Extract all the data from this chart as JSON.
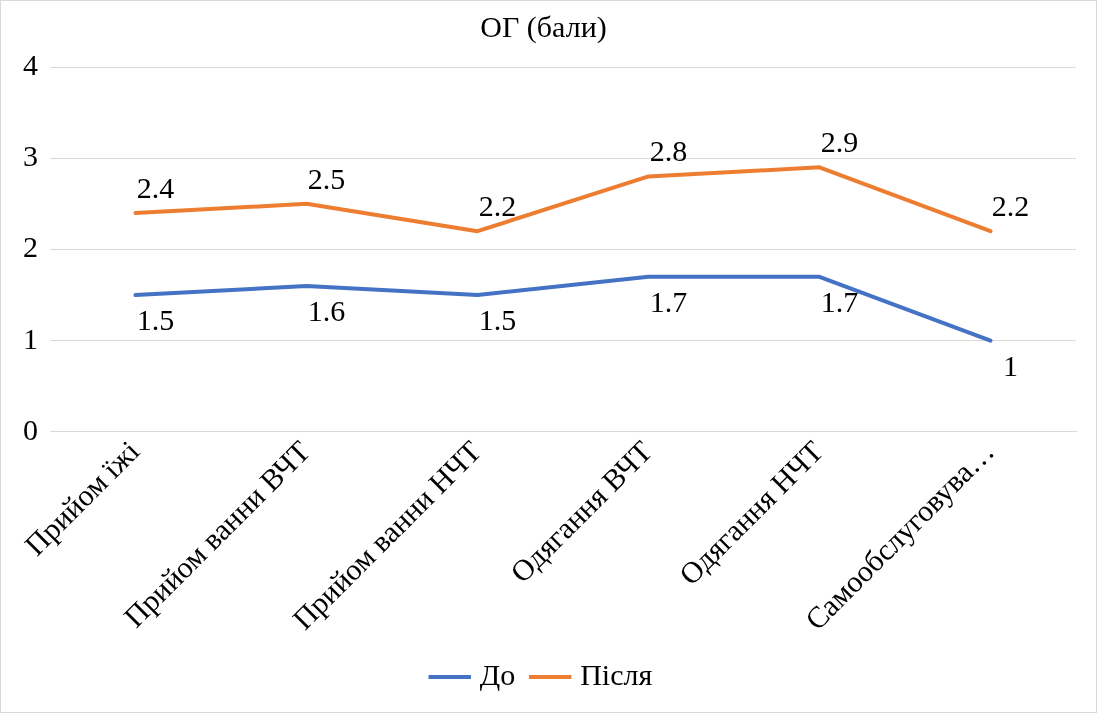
{
  "chart_data": {
    "type": "line",
    "title": "ОГ (бали)",
    "categories": [
      "Прийом їжі",
      "Прийом ванни ВЧТ",
      "Прийом ванни НЧТ",
      "Одягання ВЧТ",
      "Одягання НЧТ",
      "Самообслуговува…"
    ],
    "series": [
      {
        "name": "До",
        "color": "#4472c4",
        "values": [
          1.5,
          1.6,
          1.5,
          1.7,
          1.7,
          1
        ]
      },
      {
        "name": "Після",
        "color": "#ed7d31",
        "values": [
          2.4,
          2.5,
          2.2,
          2.8,
          2.9,
          2.2
        ]
      }
    ],
    "ylim": [
      0,
      4
    ],
    "yticks": [
      0,
      1,
      2,
      3,
      4
    ],
    "grid": "y",
    "legend": "bottom",
    "marker": "none",
    "line_style": "solid",
    "data_labels": true
  }
}
